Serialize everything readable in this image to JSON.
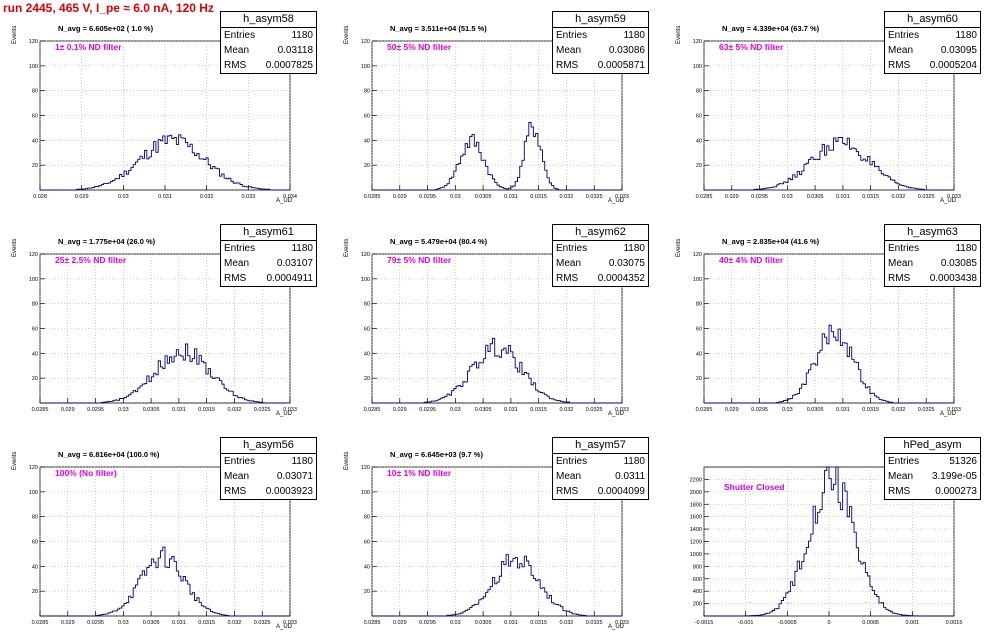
{
  "page_title": "run 2445,   465 V, I_pe ≈ 6.0 nA, 120 Hz",
  "colors": {
    "title": "#e00000",
    "histogram": "#000080",
    "filter_label": "#e000e0",
    "grid": "#b0b0b0"
  },
  "chart_data": [
    {
      "type": "histogram",
      "name": "h_asym58",
      "ylabel": "Events",
      "xlabel": "A_UD",
      "avg_label": "N_avg = 6.605e+02 ( 1.0 %)",
      "filter_label": "1± 0.1% ND filter",
      "stats": {
        "entries_label": "Entries",
        "entries": "1180",
        "mean_label": "Mean",
        "mean": "0.03118",
        "rms_label": "RMS",
        "rms": "0.0007825"
      },
      "xlim": [
        0.028,
        0.034
      ],
      "ylim": [
        0,
        120
      ],
      "xticks": [
        "0.028",
        "0.029",
        "0.03",
        "0.031",
        "0.032",
        "0.033",
        "0.034"
      ],
      "yticks": [
        "20",
        "40",
        "60",
        "80",
        "100",
        "120"
      ],
      "shape": {
        "peaks": [
          [
            0.03118,
            40,
            0.00078
          ]
        ]
      }
    },
    {
      "type": "histogram",
      "name": "h_asym59",
      "ylabel": "Events",
      "xlabel": "A_UD",
      "avg_label": "N_avg = 3.511e+04 (51.5 %)",
      "filter_label": "50± 5% ND filter",
      "stats": {
        "entries_label": "Entries",
        "entries": "1180",
        "mean_label": "Mean",
        "mean": "0.03086",
        "rms_label": "RMS",
        "rms": "0.0005871"
      },
      "xlim": [
        0.0285,
        0.033
      ],
      "ylim": [
        0,
        120
      ],
      "xticks": [
        "0.0285",
        "0.029",
        "0.0295",
        "0.03",
        "0.0305",
        "0.031",
        "0.0315",
        "0.032",
        "0.0325",
        "0.033"
      ],
      "yticks": [
        "20",
        "40",
        "60",
        "80",
        "100",
        "120"
      ],
      "shape": {
        "peaks": [
          [
            0.0303,
            40,
            0.00022
          ],
          [
            0.0314,
            52,
            0.00015
          ]
        ]
      }
    },
    {
      "type": "histogram",
      "name": "h_asym60",
      "ylabel": "Events",
      "xlabel": "A_UD",
      "avg_label": "N_avg = 4.339e+04 (63.7 %)",
      "filter_label": "63± 5% ND filter",
      "stats": {
        "entries_label": "Entries",
        "entries": "1180",
        "mean_label": "Mean",
        "mean": "0.03095",
        "rms_label": "RMS",
        "rms": "0.0005204"
      },
      "xlim": [
        0.0285,
        0.033
      ],
      "ylim": [
        0,
        120
      ],
      "xticks": [
        "0.0285",
        "0.029",
        "0.0295",
        "0.03",
        "0.0305",
        "0.031",
        "0.0315",
        "0.032",
        "0.0325",
        "0.033"
      ],
      "yticks": [
        "20",
        "40",
        "60",
        "80",
        "100",
        "120"
      ],
      "shape": {
        "peaks": [
          [
            0.03095,
            38,
            0.00052
          ]
        ]
      }
    },
    {
      "type": "histogram",
      "name": "h_asym61",
      "ylabel": "Events",
      "xlabel": "A_UD",
      "avg_label": "N_avg = 1.775e+04 (26.0 %)",
      "filter_label": "25± 2.5% ND filter",
      "stats": {
        "entries_label": "Entries",
        "entries": "1180",
        "mean_label": "Mean",
        "mean": "0.03107",
        "rms_label": "RMS",
        "rms": "0.0004911"
      },
      "xlim": [
        0.0285,
        0.033
      ],
      "ylim": [
        0,
        120
      ],
      "xticks": [
        "0.0285",
        "0.029",
        "0.0295",
        "0.03",
        "0.0305",
        "0.031",
        "0.0315",
        "0.032",
        "0.0325",
        "0.033"
      ],
      "yticks": [
        "20",
        "40",
        "60",
        "80",
        "100",
        "120"
      ],
      "shape": {
        "peaks": [
          [
            0.03107,
            42,
            0.00049
          ]
        ]
      }
    },
    {
      "type": "histogram",
      "name": "h_asym62",
      "ylabel": "Events",
      "xlabel": "A_UD",
      "avg_label": "N_avg = 5.479e+04 (80.4 %)",
      "filter_label": "79± 5% ND filter",
      "stats": {
        "entries_label": "Entries",
        "entries": "1180",
        "mean_label": "Mean",
        "mean": "0.03075",
        "rms_label": "RMS",
        "rms": "0.0004352"
      },
      "xlim": [
        0.0285,
        0.033
      ],
      "ylim": [
        0,
        120
      ],
      "xticks": [
        "0.0285",
        "0.029",
        "0.0295",
        "0.03",
        "0.0305",
        "0.031",
        "0.0315",
        "0.032",
        "0.0325",
        "0.033"
      ],
      "yticks": [
        "20",
        "40",
        "60",
        "80",
        "100",
        "120"
      ],
      "shape": {
        "peaks": [
          [
            0.03075,
            45,
            0.00044
          ]
        ]
      }
    },
    {
      "type": "histogram",
      "name": "h_asym63",
      "ylabel": "Events",
      "xlabel": "A_UD",
      "avg_label": "N_avg = 2.835e+04 (41.6 %)",
      "filter_label": "40± 4% ND filter",
      "stats": {
        "entries_label": "Entries",
        "entries": "1180",
        "mean_label": "Mean",
        "mean": "0.03085",
        "rms_label": "RMS",
        "rms": "0.0003438"
      },
      "xlim": [
        0.0285,
        0.033
      ],
      "ylim": [
        0,
        120
      ],
      "xticks": [
        "0.0285",
        "0.029",
        "0.0295",
        "0.03",
        "0.0305",
        "0.031",
        "0.0315",
        "0.032",
        "0.0325",
        "0.033"
      ],
      "yticks": [
        "20",
        "40",
        "60",
        "80",
        "100",
        "120"
      ],
      "shape": {
        "peaks": [
          [
            0.03085,
            58,
            0.00034
          ]
        ]
      }
    },
    {
      "type": "histogram",
      "name": "h_asym56",
      "ylabel": "Events",
      "xlabel": "A_UD",
      "avg_label": "N_avg = 6.816e+04 (100.0 %)",
      "filter_label": "100% (No filter)",
      "stats": {
        "entries_label": "Entries",
        "entries": "1180",
        "mean_label": "Mean",
        "mean": "0.03071",
        "rms_label": "RMS",
        "rms": "0.0003923"
      },
      "xlim": [
        0.0285,
        0.033
      ],
      "ylim": [
        0,
        120
      ],
      "xticks": [
        "0.0285",
        "0.029",
        "0.0295",
        "0.03",
        "0.0305",
        "0.031",
        "0.0315",
        "0.032",
        "0.0325",
        "0.033"
      ],
      "yticks": [
        "20",
        "40",
        "60",
        "80",
        "100",
        "120"
      ],
      "shape": {
        "peaks": [
          [
            0.03071,
            48,
            0.00039
          ]
        ]
      }
    },
    {
      "type": "histogram",
      "name": "h_asym57",
      "ylabel": "Events",
      "xlabel": "A_UD",
      "avg_label": "N_avg = 6.645e+03 (9.7 %)",
      "filter_label": "10± 1% ND filter",
      "stats": {
        "entries_label": "Entries",
        "entries": "1180",
        "mean_label": "Mean",
        "mean": "0.0311",
        "rms_label": "RMS",
        "rms": "0.0004099"
      },
      "xlim": [
        0.0285,
        0.033
      ],
      "ylim": [
        0,
        120
      ],
      "xticks": [
        "0.0285",
        "0.029",
        "0.0295",
        "0.03",
        "0.0305",
        "0.031",
        "0.0315",
        "0.032",
        "0.0325",
        "0.033"
      ],
      "yticks": [
        "20",
        "40",
        "60",
        "80",
        "100",
        "120"
      ],
      "shape": {
        "peaks": [
          [
            0.0311,
            46,
            0.00041
          ]
        ]
      }
    },
    {
      "type": "histogram",
      "name": "hPed_asym",
      "ylabel": "",
      "xlabel": "",
      "avg_label": "",
      "filter_label": "Shutter Closed",
      "stats": {
        "entries_label": "Entries",
        "entries": "51326",
        "mean_label": "Mean",
        "mean": "3.199e-05",
        "rms_label": "RMS",
        "rms": "0.000273"
      },
      "xlim": [
        -0.0015,
        0.0015
      ],
      "ylim": [
        0,
        2400
      ],
      "xticks": [
        "-0.0015",
        "-0.001",
        "-0.0005",
        "0",
        "0.0005",
        "0.001",
        "0.0015"
      ],
      "yticks": [
        "200",
        "400",
        "600",
        "800",
        "1000",
        "1200",
        "1400",
        "1600",
        "1800",
        "2000",
        "2200"
      ],
      "shape": {
        "peaks": [
          [
            3e-05,
            2260,
            0.000273
          ]
        ]
      }
    }
  ]
}
